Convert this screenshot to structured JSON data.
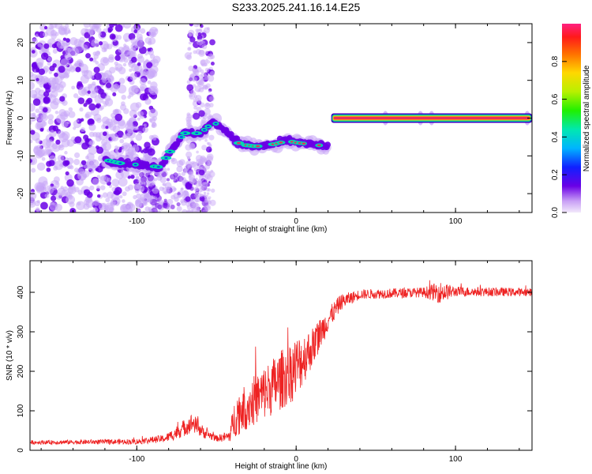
{
  "title": "S233.2025.241.16.14.E25",
  "colors": {
    "line": "#ee2222",
    "axis": "#000000",
    "speckle": "#6a00e6",
    "speckle_light": "#c9a8f7",
    "trace_core": "#e8305a",
    "trace_edge": "#00d8b0"
  },
  "chart_data": [
    {
      "type": "heatmap",
      "name": "spectrogram",
      "xlabel": "Height of straight line (km)",
      "ylabel": "Frequency (Hz)",
      "xlim": [
        -167,
        148
      ],
      "ylim": [
        -25,
        25
      ],
      "xticks": [
        -100,
        0,
        100
      ],
      "xtick_labels": [
        "-100",
        "0",
        "100"
      ],
      "yticks": [
        -20,
        -10,
        0,
        10,
        20
      ],
      "ytick_labels": [
        "-20",
        "-10",
        "0",
        "10",
        "20"
      ],
      "colorbar": {
        "label": "Normalized spectral amplitude",
        "range": [
          0,
          1
        ],
        "ticks": [
          0.0,
          0.2,
          0.4,
          0.6,
          0.8
        ],
        "tick_labels": [
          "0.0",
          "0.2",
          "0.4",
          "0.6",
          "0.8"
        ]
      },
      "features": [
        {
          "name": "broadband noise region",
          "x_range": [
            -167,
            -95
          ],
          "y_range": [
            -25,
            25
          ]
        },
        {
          "name": "noise column",
          "x_range": [
            -68,
            -52
          ],
          "y_range": [
            -25,
            25
          ]
        },
        {
          "name": "doppler trace",
          "points": [
            [
              -120,
              -11
            ],
            [
              -110,
              -12
            ],
            [
              -95,
              -12.5
            ],
            [
              -85,
              -13
            ],
            [
              -78,
              -8
            ],
            [
              -70,
              -4
            ],
            [
              -60,
              -4
            ],
            [
              -52,
              -1
            ],
            [
              -45,
              -3
            ],
            [
              -40,
              -5
            ],
            [
              -35,
              -7
            ],
            [
              -25,
              -7.5
            ],
            [
              -15,
              -7
            ],
            [
              -5,
              -6
            ],
            [
              0,
              -6.5
            ],
            [
              10,
              -7
            ],
            [
              20,
              -7.5
            ]
          ]
        },
        {
          "name": "carrier line",
          "x_range": [
            22,
            148
          ],
          "y": 0
        }
      ]
    },
    {
      "type": "line",
      "name": "snr",
      "xlabel": "Height of straight line (km)",
      "ylabel": "SNR (10 * v/v)",
      "xlim": [
        -167,
        148
      ],
      "ylim": [
        0,
        480
      ],
      "xticks": [
        -100,
        0,
        100
      ],
      "xtick_labels": [
        "-100",
        "0",
        "100"
      ],
      "yticks": [
        0,
        100,
        200,
        300,
        400
      ],
      "ytick_labels": [
        "0",
        "100",
        "200",
        "300",
        "400"
      ],
      "envelope": [
        {
          "x": -167,
          "mean": 20,
          "spread": 10
        },
        {
          "x": -100,
          "mean": 22,
          "spread": 14
        },
        {
          "x": -82,
          "mean": 30,
          "spread": 20
        },
        {
          "x": -75,
          "mean": 45,
          "spread": 35
        },
        {
          "x": -65,
          "mean": 70,
          "spread": 50
        },
        {
          "x": -58,
          "mean": 45,
          "spread": 30
        },
        {
          "x": -50,
          "mean": 30,
          "spread": 15
        },
        {
          "x": -42,
          "mean": 35,
          "spread": 30
        },
        {
          "x": -38,
          "mean": 90,
          "spread": 110
        },
        {
          "x": -25,
          "mean": 130,
          "spread": 130
        },
        {
          "x": -12,
          "mean": 170,
          "spread": 150
        },
        {
          "x": 0,
          "mean": 210,
          "spread": 160
        },
        {
          "x": 10,
          "mean": 260,
          "spread": 100
        },
        {
          "x": 20,
          "mean": 330,
          "spread": 60
        },
        {
          "x": 28,
          "mean": 375,
          "spread": 40
        },
        {
          "x": 40,
          "mean": 395,
          "spread": 25
        },
        {
          "x": 80,
          "mean": 400,
          "spread": 25
        },
        {
          "x": 90,
          "mean": 400,
          "spread": 55
        },
        {
          "x": 100,
          "mean": 402,
          "spread": 25
        },
        {
          "x": 148,
          "mean": 400,
          "spread": 20
        }
      ]
    }
  ]
}
